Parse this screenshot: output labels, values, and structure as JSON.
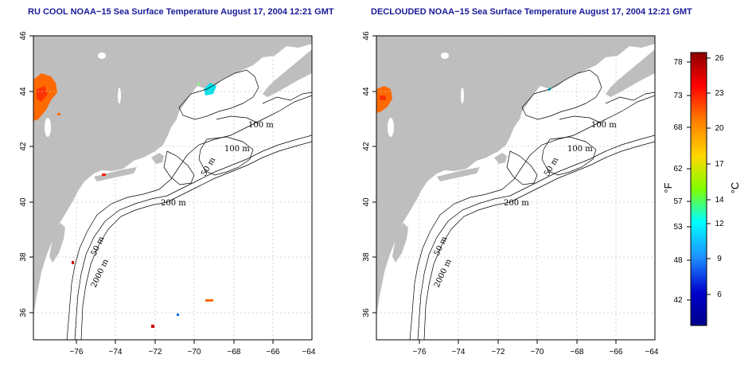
{
  "panels": [
    {
      "title": "RU COOL NOAA−15 Sea Surface Temperature August 17, 2004 12:21 GMT"
    },
    {
      "title": "DECLOUDED NOAA−15 Sea Surface Temperature August 17, 2004 12:21 GMT"
    }
  ],
  "axes": {
    "lon_labels": [
      "−76",
      "−74",
      "−72",
      "−70",
      "−68",
      "−66",
      "−64"
    ],
    "lat_labels": [
      "46",
      "44",
      "42",
      "40",
      "38",
      "36"
    ]
  },
  "contour_labels": {
    "m100": "100 m",
    "m50": "50 m",
    "m200": "200 m",
    "m2000": "2000 m"
  },
  "colorbar": {
    "unit_f": "°F",
    "unit_c": "°C",
    "fahrenheit_ticks": [
      "78",
      "73",
      "68",
      "62",
      "57",
      "53",
      "48",
      "42"
    ],
    "celsius_ticks": [
      "26",
      "23",
      "20",
      "17",
      "14",
      "12",
      "9",
      "6"
    ],
    "colors": [
      "#8b0000",
      "#ff0000",
      "#ff7f00",
      "#ffd700",
      "#7fff00",
      "#00ffff",
      "#1e90ff",
      "#0000cd",
      "#00008b"
    ]
  }
}
